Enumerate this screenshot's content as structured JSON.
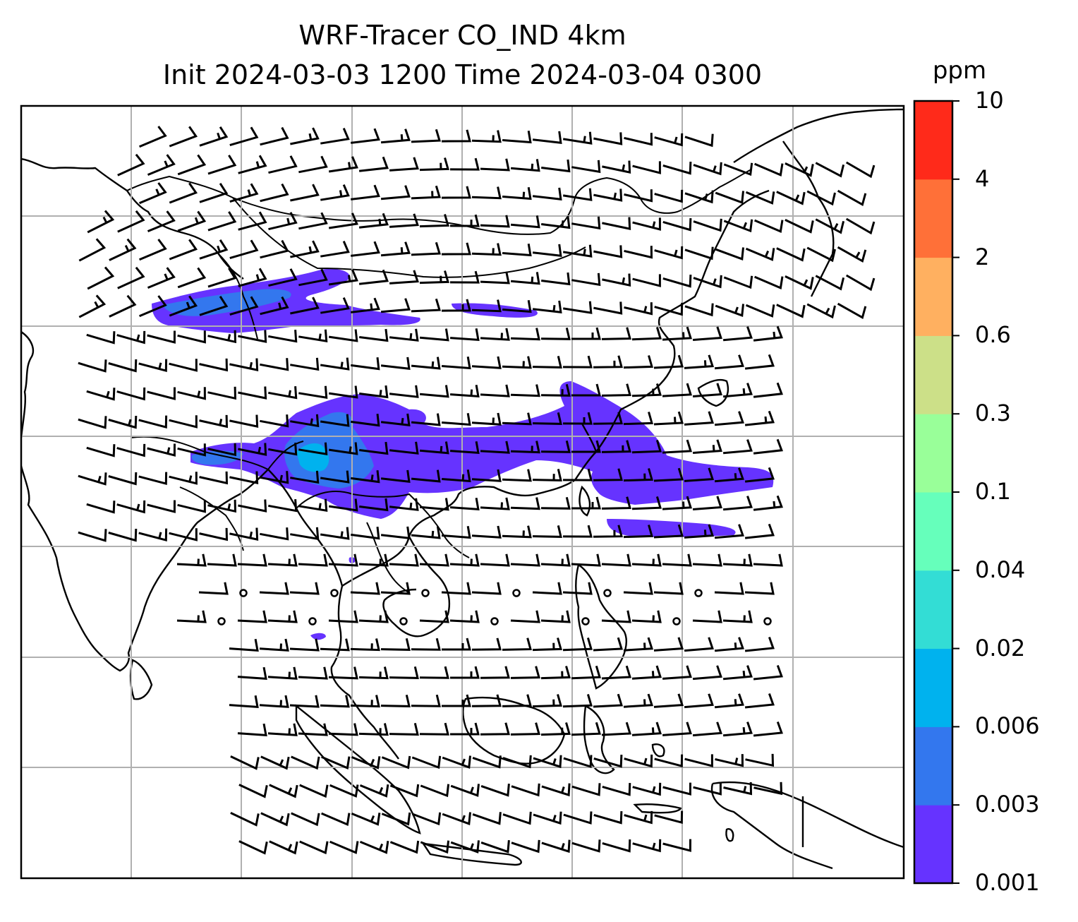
{
  "title": {
    "line1": "WRF-Tracer CO_IND 4km",
    "line2": "Init 2024-03-03 1200 Time 2024-03-04 0300"
  },
  "colorbar": {
    "unit": "ppm",
    "levels": [
      "0.001",
      "0.003",
      "0.006",
      "0.02",
      "0.04",
      "0.1",
      "0.3",
      "0.6",
      "2",
      "4",
      "10"
    ],
    "colors": [
      "#6633ff",
      "#3377ee",
      "#00b2ee",
      "#33ddd5",
      "#66ffbb",
      "#99ff99",
      "#cce088",
      "#ffb060",
      "#ff7038",
      "#ff2a1a"
    ]
  },
  "map": {
    "features": [
      "coastlines",
      "country borders",
      "lat/lon gridlines",
      "wind barbs",
      "CO tracer concentration"
    ],
    "plume_color": "#6633ff",
    "plume_core_color": "#3377ee",
    "plume_peak_color": "#00b2ee",
    "grid_color": "#b0b0b0",
    "line_color": "#000000"
  }
}
